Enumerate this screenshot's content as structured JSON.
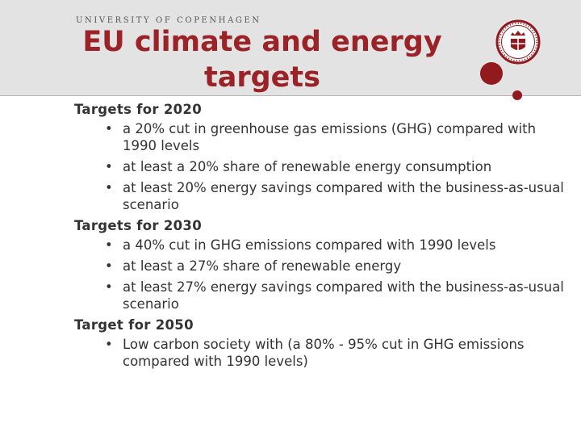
{
  "header": {
    "institution": "UNIVERSITY OF COPENHAGEN",
    "title_line1": "EU climate and energy",
    "title_line2": "targets",
    "seal_icon": "university-seal-icon",
    "accent_color": "#901a1e",
    "title_color": "#9b2226"
  },
  "sections": [
    {
      "title": "Targets for 2020",
      "items": [
        "a 20% cut in greenhouse gas emissions (GHG) compared with 1990 levels",
        "at least a 20% share of renewable energy consumption",
        "at least 20% energy savings compared with the business-as-usual scenario"
      ]
    },
    {
      "title": "Targets for 2030",
      "items": [
        "a 40% cut in GHG emissions compared with 1990 levels",
        "at least a 27% share of renewable energy",
        "at least 27% energy savings compared with the business-as-usual scenario"
      ]
    },
    {
      "title": "Target for 2050",
      "items": [
        "Low carbon society with (a 80% - 95% cut in GHG emissions compared with 1990 levels)"
      ]
    }
  ]
}
